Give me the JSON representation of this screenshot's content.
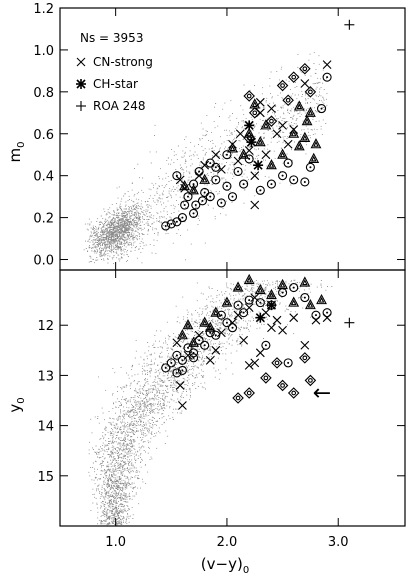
{
  "chart_data": [
    {
      "type": "scatter",
      "panel": "top",
      "ylabel_base": "m",
      "ylabel_sub": "0",
      "xlim": [
        0.5,
        3.6
      ],
      "ylim": [
        -0.05,
        1.2
      ],
      "xticks": [
        1.0,
        2.0,
        3.0
      ],
      "yticks": [
        0.0,
        0.2,
        0.4,
        0.6,
        0.8,
        1.0,
        1.2
      ],
      "ytick_labels": [
        "0.0",
        "0.2",
        "0.4",
        "0.6",
        "0.8",
        "1.0",
        "1.2"
      ],
      "annotation": "Ns = 3953",
      "legend": [
        {
          "marker": "x",
          "label": "CN-strong"
        },
        {
          "marker": "asterisk",
          "label": "CH-star"
        },
        {
          "marker": "plus",
          "label": "ROA 248"
        }
      ],
      "series": [
        {
          "marker": "circle-dot",
          "points": [
            [
              1.45,
              0.16
            ],
            [
              1.5,
              0.17
            ],
            [
              1.55,
              0.18
            ],
            [
              1.6,
              0.2
            ],
            [
              1.62,
              0.26
            ],
            [
              1.65,
              0.3
            ],
            [
              1.7,
              0.22
            ],
            [
              1.72,
              0.26
            ],
            [
              1.78,
              0.28
            ],
            [
              1.8,
              0.32
            ],
            [
              1.85,
              0.3
            ],
            [
              1.9,
              0.38
            ],
            [
              1.95,
              0.27
            ],
            [
              2.0,
              0.35
            ],
            [
              2.05,
              0.3
            ],
            [
              2.1,
              0.42
            ],
            [
              2.15,
              0.36
            ],
            [
              2.2,
              0.48
            ],
            [
              2.3,
              0.33
            ],
            [
              2.4,
              0.36
            ],
            [
              2.5,
              0.4
            ],
            [
              2.55,
              0.46
            ],
            [
              2.6,
              0.38
            ],
            [
              2.7,
              0.37
            ],
            [
              2.75,
              0.44
            ],
            [
              2.85,
              0.72
            ],
            [
              2.9,
              0.87
            ],
            [
              1.55,
              0.4
            ],
            [
              1.7,
              0.36
            ],
            [
              1.75,
              0.42
            ],
            [
              1.85,
              0.46
            ],
            [
              1.9,
              0.44
            ],
            [
              2.0,
              0.5
            ]
          ]
        },
        {
          "marker": "triangle",
          "points": [
            [
              2.05,
              0.53
            ],
            [
              2.15,
              0.5
            ],
            [
              2.2,
              0.6
            ],
            [
              2.3,
              0.56
            ],
            [
              2.35,
              0.64
            ],
            [
              2.4,
              0.45
            ],
            [
              2.5,
              0.5
            ],
            [
              2.6,
              0.6
            ],
            [
              2.65,
              0.54
            ],
            [
              2.7,
              0.58
            ],
            [
              2.72,
              0.66
            ],
            [
              2.75,
              0.7
            ],
            [
              2.78,
              0.48
            ],
            [
              2.8,
              0.55
            ],
            [
              2.65,
              0.73
            ],
            [
              2.25,
              0.74
            ],
            [
              1.62,
              0.35
            ],
            [
              1.7,
              0.33
            ],
            [
              1.8,
              0.38
            ]
          ]
        },
        {
          "marker": "diamond",
          "points": [
            [
              2.2,
              0.78
            ],
            [
              2.25,
              0.7
            ],
            [
              2.4,
              0.66
            ],
            [
              2.5,
              0.83
            ],
            [
              2.55,
              0.76
            ],
            [
              2.6,
              0.87
            ],
            [
              2.7,
              0.91
            ],
            [
              2.75,
              0.8
            ],
            [
              2.2,
              0.58
            ]
          ]
        },
        {
          "marker": "x",
          "points": [
            [
              1.58,
              0.38
            ],
            [
              1.62,
              0.34
            ],
            [
              1.75,
              0.4
            ],
            [
              1.8,
              0.45
            ],
            [
              1.9,
              0.5
            ],
            [
              1.95,
              0.43
            ],
            [
              2.05,
              0.55
            ],
            [
              2.1,
              0.47
            ],
            [
              2.12,
              0.6
            ],
            [
              2.2,
              0.52
            ],
            [
              2.25,
              0.4
            ],
            [
              2.25,
              0.26
            ],
            [
              2.3,
              0.7
            ],
            [
              2.35,
              0.5
            ],
            [
              2.4,
              0.72
            ],
            [
              2.45,
              0.6
            ],
            [
              2.5,
              0.64
            ],
            [
              2.55,
              0.55
            ],
            [
              2.6,
              0.62
            ],
            [
              2.7,
              0.84
            ],
            [
              2.9,
              0.93
            ],
            [
              2.3,
              0.75
            ]
          ]
        },
        {
          "marker": "asterisk",
          "points": [
            [
              2.2,
              0.64
            ],
            [
              2.22,
              0.56
            ],
            [
              2.28,
              0.45
            ]
          ]
        },
        {
          "marker": "plus",
          "points": [
            [
              3.1,
              1.12
            ]
          ]
        }
      ]
    },
    {
      "type": "scatter",
      "panel": "bottom",
      "xlabel": "(v−y)",
      "xlabel_sub": "0",
      "ylabel_base": "y",
      "ylabel_sub": "0",
      "xlim": [
        0.5,
        3.6
      ],
      "ylim": [
        16.0,
        10.9
      ],
      "xticks": [
        1.0,
        2.0,
        3.0
      ],
      "xtick_labels": [
        "1.0",
        "2.0",
        "3.0"
      ],
      "yticks": [
        12,
        13,
        14,
        15
      ],
      "ytick_labels": [
        "12",
        "13",
        "14",
        "15"
      ],
      "annotation": "←",
      "series": [
        {
          "marker": "circle-dot",
          "points": [
            [
              1.45,
              12.85
            ],
            [
              1.5,
              12.75
            ],
            [
              1.55,
              12.6
            ],
            [
              1.6,
              12.9
            ],
            [
              1.65,
              12.45
            ],
            [
              1.7,
              12.55
            ],
            [
              1.75,
              12.3
            ],
            [
              1.8,
              12.4
            ],
            [
              1.85,
              12.15
            ],
            [
              1.9,
              12.2
            ],
            [
              1.95,
              11.8
            ],
            [
              2.0,
              11.95
            ],
            [
              2.05,
              12.05
            ],
            [
              2.1,
              11.6
            ],
            [
              2.15,
              11.75
            ],
            [
              2.2,
              11.5
            ],
            [
              2.3,
              11.55
            ],
            [
              2.4,
              11.6
            ],
            [
              2.5,
              11.35
            ],
            [
              2.6,
              11.25
            ],
            [
              2.7,
              11.45
            ],
            [
              2.8,
              11.8
            ],
            [
              2.9,
              11.75
            ],
            [
              1.6,
              12.7
            ],
            [
              1.7,
              12.65
            ],
            [
              2.35,
              12.4
            ],
            [
              2.55,
              12.75
            ],
            [
              1.55,
              12.95
            ]
          ]
        },
        {
          "marker": "triangle",
          "points": [
            [
              1.6,
              12.2
            ],
            [
              1.65,
              12.0
            ],
            [
              1.7,
              12.35
            ],
            [
              1.8,
              11.95
            ],
            [
              1.85,
              12.05
            ],
            [
              2.0,
              11.55
            ],
            [
              2.2,
              11.1
            ],
            [
              2.3,
              11.3
            ],
            [
              2.4,
              11.4
            ],
            [
              2.5,
              11.2
            ],
            [
              2.6,
              11.55
            ],
            [
              2.7,
              11.15
            ],
            [
              2.75,
              11.6
            ],
            [
              2.85,
              11.5
            ],
            [
              1.9,
              11.75
            ],
            [
              2.1,
              11.25
            ]
          ]
        },
        {
          "marker": "diamond",
          "points": [
            [
              2.1,
              13.45
            ],
            [
              2.2,
              13.35
            ],
            [
              2.35,
              13.05
            ],
            [
              2.45,
              12.75
            ],
            [
              2.5,
              13.2
            ],
            [
              2.6,
              13.35
            ],
            [
              2.7,
              12.65
            ],
            [
              2.75,
              13.1
            ]
          ]
        },
        {
          "marker": "x",
          "points": [
            [
              1.55,
              12.35
            ],
            [
              1.58,
              13.2
            ],
            [
              1.6,
              13.6
            ],
            [
              1.65,
              12.6
            ],
            [
              1.75,
              12.2
            ],
            [
              1.85,
              12.7
            ],
            [
              1.9,
              12.5
            ],
            [
              1.95,
              12.15
            ],
            [
              2.05,
              11.95
            ],
            [
              2.1,
              11.8
            ],
            [
              2.15,
              12.3
            ],
            [
              2.2,
              11.65
            ],
            [
              2.25,
              11.45
            ],
            [
              2.3,
              12.55
            ],
            [
              2.35,
              11.75
            ],
            [
              2.4,
              12.05
            ],
            [
              2.45,
              11.9
            ],
            [
              2.5,
              12.1
            ],
            [
              2.6,
              11.85
            ],
            [
              2.7,
              12.4
            ],
            [
              2.8,
              11.9
            ],
            [
              2.9,
              11.85
            ],
            [
              2.2,
              12.8
            ],
            [
              2.25,
              12.75
            ]
          ]
        },
        {
          "marker": "asterisk",
          "points": [
            [
              2.3,
              11.85
            ],
            [
              2.4,
              11.6
            ]
          ]
        },
        {
          "marker": "plus",
          "points": [
            [
              3.1,
              11.95
            ]
          ]
        }
      ]
    }
  ]
}
